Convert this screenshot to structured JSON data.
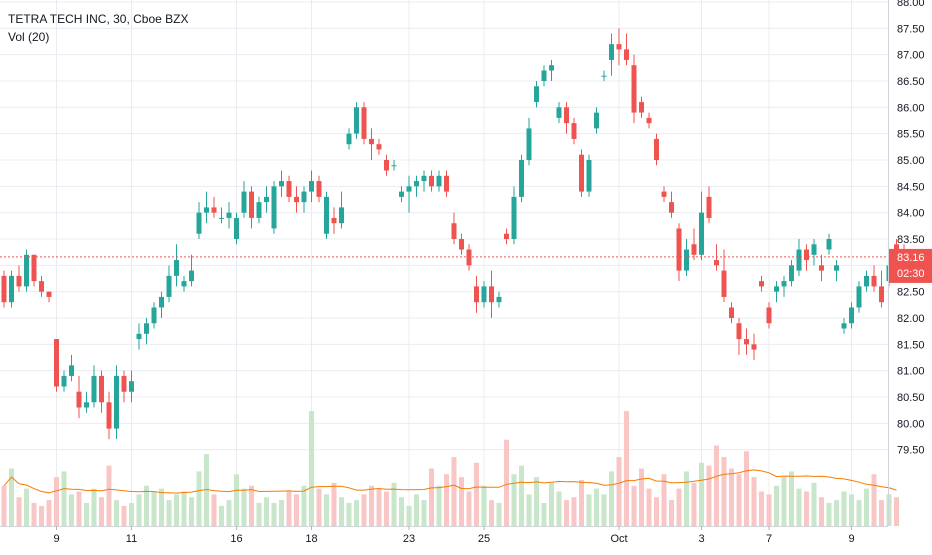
{
  "legend": {
    "symbol_line": "TETRA TECH INC, 30, Cboe BZX",
    "volume_line": "Vol (20)"
  },
  "price_tag": {
    "price": "83.16",
    "countdown": "02:30"
  },
  "colors": {
    "up": "#26a69a",
    "down": "#ef5350",
    "up_volume": "#c8e6c9",
    "down_volume": "#f8c6c4",
    "volume_ma": "#f57c00",
    "price_line": "#ef5350",
    "grid": "#e8ecf2",
    "axis_text": "#131722"
  },
  "chart_data": {
    "type": "candlestick",
    "title": "TETRA TECH INC, 30, Cboe BZX",
    "indicators": [
      "Vol (20)"
    ],
    "ylim": [
      79.0,
      88.0
    ],
    "y_ticks": [
      "79.50",
      "80.00",
      "80.50",
      "81.00",
      "81.50",
      "82.00",
      "82.50",
      "83.00",
      "83.50",
      "84.00",
      "84.50",
      "85.00",
      "85.50",
      "86.00",
      "86.50",
      "87.00",
      "87.50",
      "88.00"
    ],
    "x_ticks": [
      {
        "label": "9",
        "index": 7
      },
      {
        "label": "11",
        "index": 17
      },
      {
        "label": "16",
        "index": 31
      },
      {
        "label": "18",
        "index": 41
      },
      {
        "label": "23",
        "index": 54
      },
      {
        "label": "25",
        "index": 64
      },
      {
        "label": "Oct",
        "index": 82
      },
      {
        "label": "3",
        "index": 93
      },
      {
        "label": "7",
        "index": 102
      },
      {
        "label": "9",
        "index": 113
      }
    ],
    "last_price": 83.16,
    "grid": true,
    "ohlc": [
      [
        82.8,
        82.9,
        82.2,
        82.3
      ],
      [
        82.3,
        82.9,
        82.2,
        82.8
      ],
      [
        82.8,
        83.0,
        82.5,
        82.6
      ],
      [
        82.6,
        83.3,
        82.5,
        83.2
      ],
      [
        83.2,
        83.2,
        82.6,
        82.7
      ],
      [
        82.7,
        82.8,
        82.4,
        82.5
      ],
      [
        82.5,
        82.5,
        82.3,
        82.4
      ],
      [
        81.6,
        81.6,
        80.6,
        80.7
      ],
      [
        80.7,
        81.0,
        80.6,
        80.9
      ],
      [
        80.9,
        81.3,
        80.8,
        81.1
      ],
      [
        80.6,
        80.9,
        80.1,
        80.3
      ],
      [
        80.3,
        80.6,
        80.2,
        80.4
      ],
      [
        80.4,
        81.1,
        80.3,
        80.9
      ],
      [
        80.9,
        81.0,
        80.2,
        80.4
      ],
      [
        80.4,
        80.6,
        79.7,
        79.9
      ],
      [
        79.9,
        81.1,
        79.7,
        80.9
      ],
      [
        80.9,
        81.0,
        80.4,
        80.6
      ],
      [
        80.6,
        81.0,
        80.4,
        80.8
      ],
      [
        81.6,
        81.9,
        81.4,
        81.7
      ],
      [
        81.7,
        82.0,
        81.5,
        81.9
      ],
      [
        81.9,
        82.3,
        81.8,
        82.2
      ],
      [
        82.2,
        82.5,
        82.0,
        82.4
      ],
      [
        82.4,
        83.0,
        82.3,
        82.8
      ],
      [
        82.8,
        83.4,
        82.6,
        83.1
      ],
      [
        82.6,
        82.8,
        82.5,
        82.7
      ],
      [
        82.7,
        83.2,
        82.6,
        82.9
      ],
      [
        83.6,
        84.2,
        83.5,
        84.0
      ],
      [
        84.0,
        84.4,
        83.8,
        84.1
      ],
      [
        84.1,
        84.3,
        83.9,
        84.0
      ],
      [
        83.9,
        84.1,
        83.8,
        83.9
      ],
      [
        83.9,
        84.2,
        83.7,
        84.0
      ],
      [
        83.5,
        84.0,
        83.4,
        83.9
      ],
      [
        84.0,
        84.6,
        83.9,
        84.4
      ],
      [
        84.4,
        84.5,
        83.7,
        83.9
      ],
      [
        83.9,
        84.3,
        83.8,
        84.2
      ],
      [
        84.2,
        84.5,
        84.0,
        84.3
      ],
      [
        83.7,
        84.6,
        83.6,
        84.5
      ],
      [
        84.5,
        84.8,
        84.3,
        84.6
      ],
      [
        84.6,
        84.7,
        84.2,
        84.3
      ],
      [
        84.3,
        84.5,
        84.0,
        84.2
      ],
      [
        84.2,
        84.5,
        84.0,
        84.4
      ],
      [
        84.4,
        84.8,
        84.2,
        84.6
      ],
      [
        84.6,
        84.7,
        84.2,
        84.3
      ],
      [
        83.6,
        84.4,
        83.5,
        84.3
      ],
      [
        83.9,
        84.1,
        83.6,
        83.8
      ],
      [
        83.8,
        84.4,
        83.7,
        84.1
      ],
      [
        85.3,
        85.6,
        85.2,
        85.5
      ],
      [
        85.5,
        86.1,
        85.4,
        86.0
      ],
      [
        86.0,
        86.1,
        85.3,
        85.4
      ],
      [
        85.4,
        85.6,
        85.0,
        85.3
      ],
      [
        85.3,
        85.4,
        85.1,
        85.2
      ],
      [
        85.0,
        85.1,
        84.7,
        84.8
      ],
      [
        84.9,
        85.0,
        84.8,
        84.9
      ],
      [
        84.3,
        84.5,
        84.2,
        84.4
      ],
      [
        84.4,
        84.7,
        84.0,
        84.5
      ],
      [
        84.5,
        84.7,
        84.3,
        84.6
      ],
      [
        84.6,
        84.8,
        84.4,
        84.7
      ],
      [
        84.7,
        84.8,
        84.4,
        84.5
      ],
      [
        84.5,
        84.8,
        84.4,
        84.7
      ],
      [
        84.7,
        84.8,
        84.3,
        84.4
      ],
      [
        83.8,
        84.0,
        83.4,
        83.5
      ],
      [
        83.5,
        83.6,
        83.2,
        83.3
      ],
      [
        83.3,
        83.4,
        82.9,
        83.0
      ],
      [
        82.6,
        82.8,
        82.1,
        82.3
      ],
      [
        82.3,
        82.7,
        82.2,
        82.6
      ],
      [
        82.6,
        82.9,
        82.0,
        82.3
      ],
      [
        82.3,
        82.5,
        82.2,
        82.4
      ],
      [
        83.6,
        83.7,
        83.4,
        83.5
      ],
      [
        83.5,
        84.5,
        83.4,
        84.3
      ],
      [
        84.3,
        85.1,
        84.2,
        85.0
      ],
      [
        85.0,
        85.8,
        84.9,
        85.6
      ],
      [
        86.1,
        86.5,
        86.0,
        86.4
      ],
      [
        86.5,
        86.8,
        86.4,
        86.7
      ],
      [
        86.7,
        86.9,
        86.5,
        86.8
      ],
      [
        85.8,
        86.1,
        85.7,
        86.0
      ],
      [
        86.0,
        86.1,
        85.5,
        85.7
      ],
      [
        85.7,
        85.8,
        85.3,
        85.4
      ],
      [
        85.1,
        85.2,
        84.3,
        84.4
      ],
      [
        84.4,
        85.1,
        84.3,
        85.0
      ],
      [
        85.6,
        86.0,
        85.5,
        85.9
      ],
      [
        86.6,
        86.7,
        86.5,
        86.6
      ],
      [
        86.9,
        87.4,
        86.6,
        87.2
      ],
      [
        87.2,
        87.5,
        86.8,
        87.1
      ],
      [
        87.1,
        87.4,
        86.8,
        86.9
      ],
      [
        86.8,
        87.0,
        85.7,
        85.9
      ],
      [
        86.1,
        86.2,
        85.8,
        85.9
      ],
      [
        85.8,
        85.9,
        85.6,
        85.7
      ],
      [
        85.4,
        85.5,
        84.9,
        85.0
      ],
      [
        84.4,
        84.5,
        84.2,
        84.3
      ],
      [
        84.2,
        84.4,
        83.9,
        84.0
      ],
      [
        83.7,
        83.8,
        82.7,
        82.9
      ],
      [
        82.9,
        83.5,
        82.8,
        83.3
      ],
      [
        83.4,
        83.7,
        83.1,
        83.2
      ],
      [
        83.2,
        84.4,
        83.1,
        84.0
      ],
      [
        84.3,
        84.5,
        83.8,
        83.9
      ],
      [
        83.1,
        83.4,
        82.9,
        83.0
      ],
      [
        82.9,
        83.3,
        82.3,
        82.4
      ],
      [
        82.2,
        82.3,
        81.9,
        82.0
      ],
      [
        81.9,
        82.0,
        81.3,
        81.6
      ],
      [
        81.6,
        81.8,
        81.3,
        81.5
      ],
      [
        81.5,
        81.7,
        81.2,
        81.4
      ],
      [
        82.7,
        82.8,
        82.5,
        82.6
      ],
      [
        82.2,
        82.3,
        81.8,
        81.9
      ],
      [
        82.5,
        82.7,
        82.3,
        82.6
      ],
      [
        82.6,
        82.8,
        82.4,
        82.7
      ],
      [
        82.7,
        83.1,
        82.6,
        83.0
      ],
      [
        82.9,
        83.5,
        82.8,
        83.3
      ],
      [
        83.3,
        83.4,
        82.9,
        83.1
      ],
      [
        83.2,
        83.5,
        83.0,
        83.4
      ],
      [
        83.0,
        83.2,
        82.7,
        82.9
      ],
      [
        83.3,
        83.6,
        83.2,
        83.5
      ],
      [
        82.9,
        83.1,
        82.7,
        83.0
      ],
      [
        81.8,
        82.0,
        81.7,
        81.9
      ],
      [
        81.9,
        82.3,
        81.8,
        82.2
      ],
      [
        82.2,
        82.7,
        82.1,
        82.6
      ],
      [
        82.6,
        82.9,
        82.5,
        82.8
      ],
      [
        82.8,
        83.0,
        82.5,
        82.6
      ],
      [
        82.6,
        82.9,
        82.2,
        82.3
      ],
      [
        82.7,
        83.1,
        82.6,
        83.0
      ],
      [
        83.4,
        83.5,
        83.2,
        83.3
      ],
      [
        83.3,
        83.4,
        83.1,
        83.16
      ]
    ],
    "volume": [
      14,
      20,
      10,
      13,
      8,
      7,
      9,
      17,
      19,
      11,
      12,
      8,
      13,
      10,
      21,
      9,
      7,
      8,
      11,
      14,
      12,
      13,
      9,
      11,
      12,
      10,
      19,
      25,
      11,
      7,
      9,
      18,
      13,
      14,
      8,
      10,
      8,
      9,
      12,
      11,
      14,
      40,
      13,
      11,
      15,
      10,
      8,
      9,
      11,
      14,
      13,
      12,
      15,
      10,
      7,
      11,
      9,
      20,
      14,
      18,
      24,
      17,
      12,
      22,
      14,
      9,
      8,
      30,
      18,
      21,
      11,
      17,
      8,
      15,
      12,
      9,
      10,
      16,
      11,
      13,
      11,
      19,
      24,
      40,
      14,
      20,
      13,
      10,
      18,
      9,
      13,
      19,
      15,
      22,
      21,
      28,
      24,
      20,
      18,
      26,
      17,
      12,
      11,
      14,
      17,
      19,
      13,
      12,
      15,
      10,
      8,
      9,
      12,
      11,
      9,
      13,
      18,
      9,
      11,
      10
    ]
  }
}
